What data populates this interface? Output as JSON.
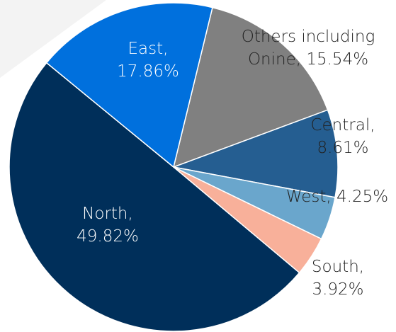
{
  "chart_data": {
    "type": "pie",
    "categories": [
      "Others including Onine",
      "Central",
      "West",
      "South",
      "North",
      "East"
    ],
    "values": [
      15.54,
      8.61,
      4.25,
      3.92,
      49.82,
      17.86
    ],
    "value_labels": [
      "15.54%",
      "8.61%",
      "4.25%",
      "3.92%",
      "49.82%",
      "17.86%"
    ],
    "data_labels": [
      "Others including Onine, 15.54%",
      "Central, 8.61%",
      "West, 4.25%",
      "South, 3.92%",
      "North, 49.82%",
      "East, 17.86%"
    ],
    "colors": [
      "#808080",
      "#255e91",
      "#6aa6cc",
      "#f8b09a",
      "#002f5a",
      "#0070dd"
    ]
  }
}
